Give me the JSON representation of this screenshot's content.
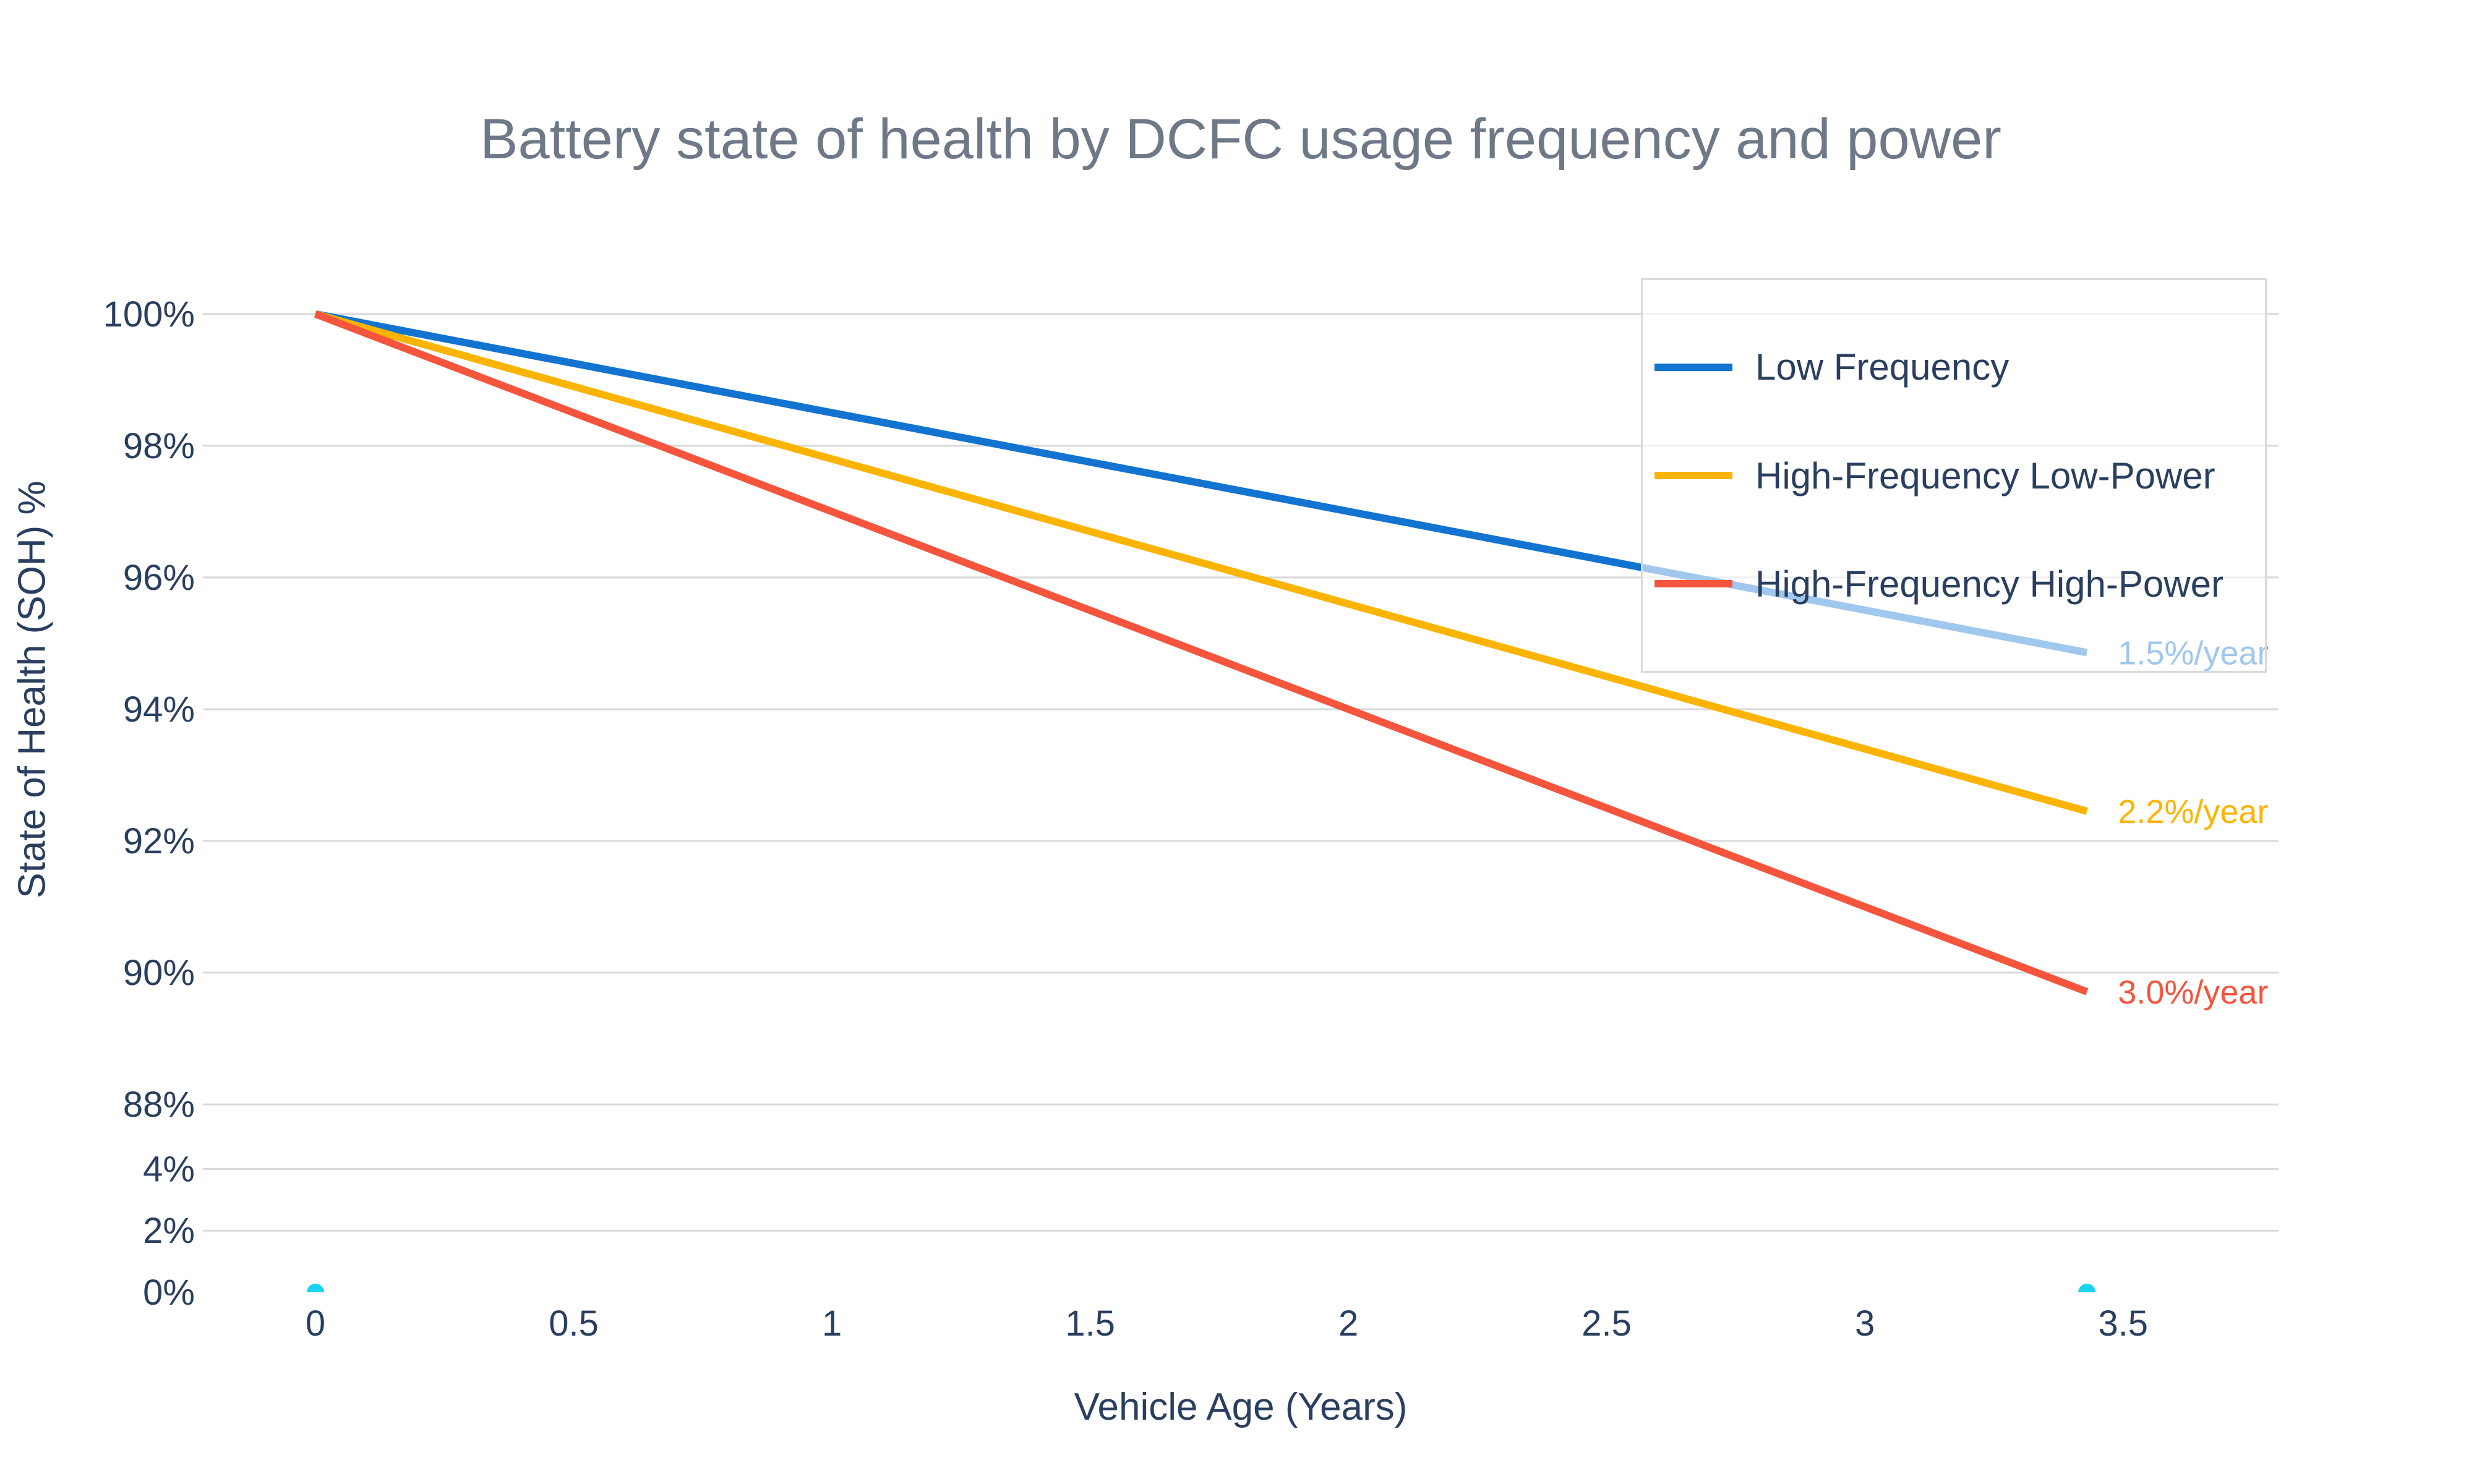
{
  "title": "Battery state of health by DCFC usage frequency and power",
  "legend": {
    "position": "top-right"
  },
  "chart_data": {
    "type": "line",
    "title": "Battery state of health by DCFC usage frequency and power",
    "xlabel": "Vehicle Age (Years)",
    "ylabel": "State of Health (SOH) %",
    "grid": true,
    "legend_position": "top-right",
    "xlim": [
      -0.218,
      3.801
    ],
    "x_ticks": [
      {
        "v": 0,
        "label": "0"
      },
      {
        "v": 0.5,
        "label": "0.5"
      },
      {
        "v": 1,
        "label": "1"
      },
      {
        "v": 1.5,
        "label": "1.5"
      },
      {
        "v": 2,
        "label": "2"
      },
      {
        "v": 2.5,
        "label": "2.5"
      },
      {
        "v": 3,
        "label": "3"
      },
      {
        "v": 3.5,
        "label": "3.5"
      }
    ],
    "y_axis_segments": [
      {
        "vmin": 87.4,
        "vmax": 100.59,
        "ticks": [
          {
            "v": 100,
            "label": "100%",
            "grid": true
          },
          {
            "v": 98,
            "label": "98%",
            "grid": true
          },
          {
            "v": 96,
            "label": "96%",
            "grid": true
          },
          {
            "v": 94,
            "label": "94%",
            "grid": true
          },
          {
            "v": 92,
            "label": "92%",
            "grid": true
          },
          {
            "v": 90,
            "label": "90%",
            "grid": true
          },
          {
            "v": 88,
            "label": "88%",
            "grid": true
          }
        ]
      },
      {
        "vmin": 0,
        "vmax": 4.81,
        "ticks": [
          {
            "v": 4,
            "label": "4%",
            "grid": true
          },
          {
            "v": 2,
            "label": "2%",
            "grid": true
          },
          {
            "v": 0,
            "label": "0%",
            "grid": false
          }
        ]
      }
    ],
    "series": [
      {
        "name": "Low Frequency",
        "color": "#1373d1",
        "mode": "line",
        "in_legend": true,
        "x": [
          0,
          3.43
        ],
        "y": [
          100,
          94.86
        ]
      },
      {
        "name": "High-Frequency Low-Power",
        "color": "#fcb400",
        "mode": "line",
        "in_legend": true,
        "x": [
          0,
          3.43
        ],
        "y": [
          100,
          92.45
        ]
      },
      {
        "name": "High-Frequency High-Power",
        "color": "#f5543d",
        "mode": "line",
        "in_legend": true,
        "x": [
          0,
          3.43
        ],
        "y": [
          100,
          89.71
        ]
      },
      {
        "name": "baseline-markers",
        "color": "#1ad3f3",
        "mode": "markers",
        "in_legend": false,
        "x": [
          0,
          3.43
        ],
        "y": [
          0,
          0
        ]
      }
    ],
    "annotations": [
      {
        "text": "1.5%/year",
        "x": 3.49,
        "y": 94.86,
        "color": "#1373d1"
      },
      {
        "text": "2.2%/year",
        "x": 3.49,
        "y": 92.45,
        "color": "#fcb400"
      },
      {
        "text": "3.0%/year",
        "x": 3.49,
        "y": 89.71,
        "color": "#f5543d"
      }
    ],
    "colors": {
      "grid": "#d9d9d9",
      "tick_text": "#2a3f5f",
      "title_text": "#6e7887",
      "background": "#ffffff"
    }
  }
}
